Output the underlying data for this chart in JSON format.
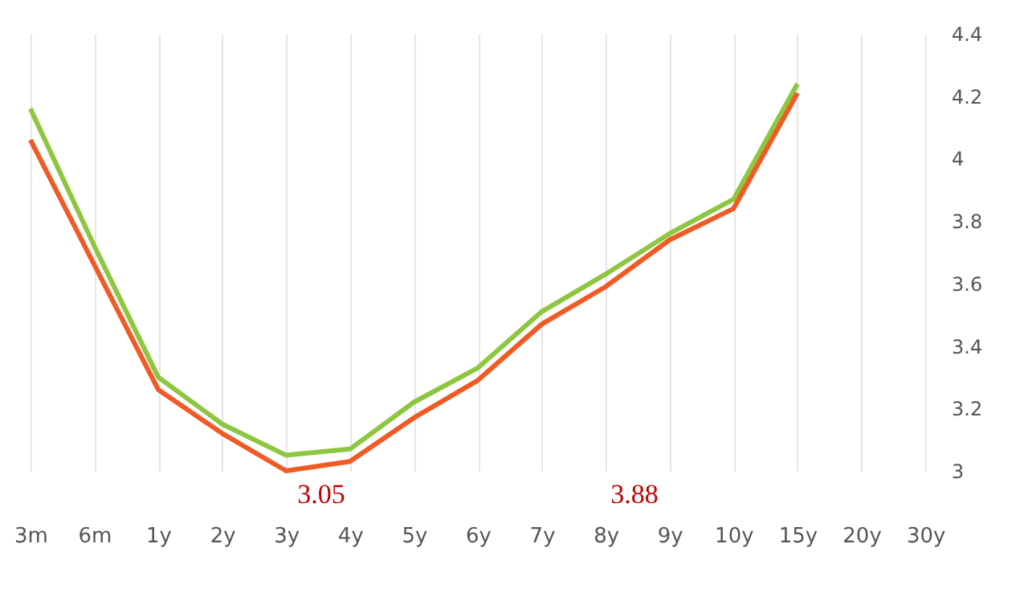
{
  "chart_data": {
    "type": "line",
    "categories": [
      "3m",
      "6m",
      "1y",
      "2y",
      "3y",
      "4y",
      "5y",
      "6y",
      "7y",
      "8y",
      "9y",
      "10y",
      "15y",
      "20y",
      "30y"
    ],
    "series": [
      {
        "color": "#8dc63f",
        "values": [
          4.16,
          3.72,
          3.3,
          3.15,
          3.05,
          3.07,
          3.22,
          3.33,
          3.51,
          3.63,
          3.76,
          3.87,
          4.24,
          null,
          null
        ]
      },
      {
        "color": "#f15a24",
        "values": [
          4.06,
          3.66,
          3.26,
          3.12,
          3.0,
          3.03,
          3.17,
          3.29,
          3.47,
          3.59,
          3.74,
          3.84,
          4.21,
          null,
          null
        ]
      }
    ],
    "ylim": [
      3,
      4.4
    ],
    "yticks": [
      3,
      3.2,
      3.4,
      3.6,
      3.8,
      4,
      4.2,
      4.4
    ],
    "grid": "x",
    "marker": "none",
    "line_style": "solid",
    "annotations": [
      "3.05",
      "3.88"
    ]
  }
}
